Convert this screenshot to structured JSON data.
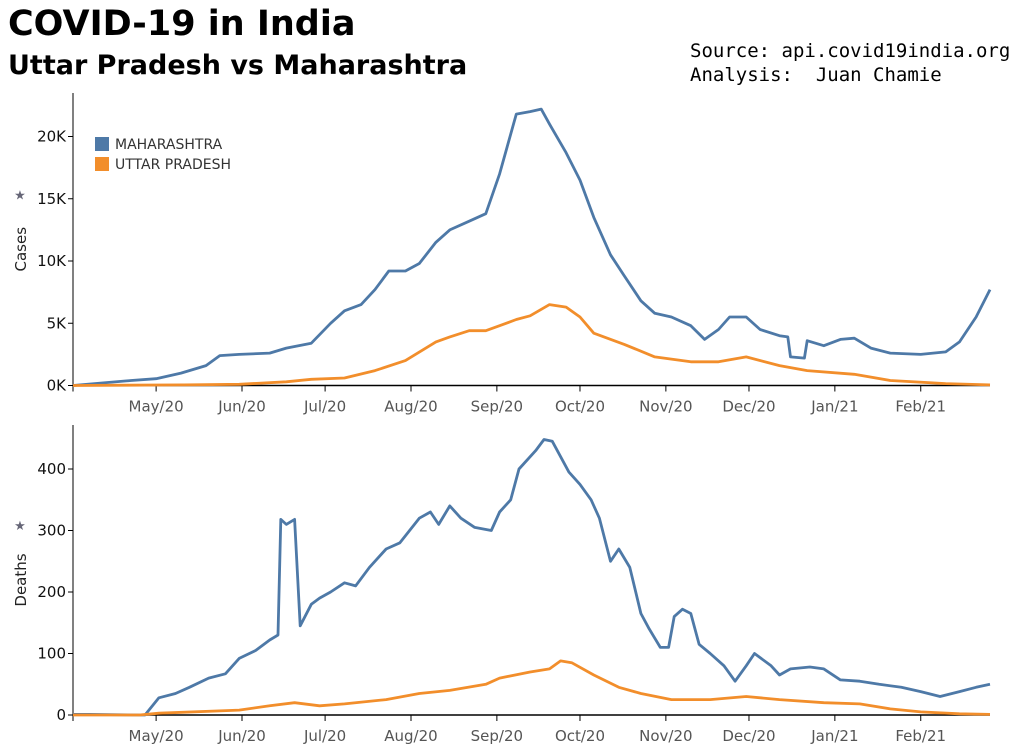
{
  "header": {
    "title": "COVID-19 in India",
    "subtitle": "Uttar Pradesh vs Maharashtra",
    "source": "Source: api.covid19india.org",
    "analysis": "Analysis:  Juan Chamie"
  },
  "colors": {
    "maharashtra": "#4e79a7",
    "uttar_pradesh": "#f28e2b"
  },
  "chart_data": [
    {
      "type": "line",
      "title": "Cases",
      "ylabel": "Cases",
      "x_units": "days since 2020-04-01",
      "xlim": [
        0,
        331
      ],
      "ylim": [
        0,
        23500
      ],
      "yticks": [
        {
          "v": 0,
          "label": "0K"
        },
        {
          "v": 5000,
          "label": "5K"
        },
        {
          "v": 10000,
          "label": "10K"
        },
        {
          "v": 15000,
          "label": "15K"
        },
        {
          "v": 20000,
          "label": "20K"
        }
      ],
      "xticks": [
        {
          "v": 30,
          "label": "May/20"
        },
        {
          "v": 61,
          "label": "Jun/20"
        },
        {
          "v": 91,
          "label": "Jul/20"
        },
        {
          "v": 122,
          "label": "Aug/20"
        },
        {
          "v": 153,
          "label": "Sep/20"
        },
        {
          "v": 183,
          "label": "Oct/20"
        },
        {
          "v": 214,
          "label": "Nov/20"
        },
        {
          "v": 244,
          "label": "Dec/20"
        },
        {
          "v": 275,
          "label": "Jan/21"
        },
        {
          "v": 306,
          "label": "Feb/21"
        }
      ],
      "legend": {
        "placement": "top-left",
        "entries": [
          "MAHARASHTRA",
          "UTTAR PRADESH"
        ]
      },
      "series": [
        {
          "name": "MAHARASHTRA",
          "points": [
            [
              0,
              0
            ],
            [
              21,
              400
            ],
            [
              30,
              550
            ],
            [
              39,
              1000
            ],
            [
              48,
              1600
            ],
            [
              53,
              2400
            ],
            [
              60,
              2500
            ],
            [
              71,
              2600
            ],
            [
              77,
              3000
            ],
            [
              86,
              3400
            ],
            [
              93,
              5000
            ],
            [
              98,
              6000
            ],
            [
              104,
              6500
            ],
            [
              109,
              7700
            ],
            [
              114,
              9200
            ],
            [
              120,
              9200
            ],
            [
              125,
              9800
            ],
            [
              131,
              11500
            ],
            [
              136,
              12500
            ],
            [
              143,
              13200
            ],
            [
              149,
              13800
            ],
            [
              154,
              17000
            ],
            [
              160,
              21800
            ],
            [
              165,
              22000
            ],
            [
              169,
              22200
            ],
            [
              172,
              21000
            ],
            [
              178,
              18700
            ],
            [
              183,
              16500
            ],
            [
              188,
              13500
            ],
            [
              194,
              10500
            ],
            [
              199,
              8800
            ],
            [
              205,
              6800
            ],
            [
              210,
              5800
            ],
            [
              216,
              5500
            ],
            [
              223,
              4800
            ],
            [
              228,
              3700
            ],
            [
              233,
              4500
            ],
            [
              237,
              5500
            ],
            [
              243,
              5500
            ],
            [
              248,
              4500
            ],
            [
              255,
              4000
            ],
            [
              258,
              3900
            ],
            [
              259,
              2300
            ],
            [
              264,
              2200
            ],
            [
              265,
              3600
            ],
            [
              271,
              3200
            ],
            [
              277,
              3700
            ],
            [
              282,
              3800
            ],
            [
              288,
              3000
            ],
            [
              295,
              2600
            ],
            [
              306,
              2500
            ],
            [
              315,
              2700
            ],
            [
              320,
              3500
            ],
            [
              326,
              5500
            ],
            [
              331,
              7700
            ]
          ]
        },
        {
          "name": "UTTAR PRADESH",
          "points": [
            [
              0,
              0
            ],
            [
              40,
              50
            ],
            [
              60,
              100
            ],
            [
              77,
              300
            ],
            [
              86,
              500
            ],
            [
              98,
              600
            ],
            [
              109,
              1200
            ],
            [
              120,
              2000
            ],
            [
              131,
              3500
            ],
            [
              136,
              3900
            ],
            [
              143,
              4400
            ],
            [
              149,
              4400
            ],
            [
              154,
              4800
            ],
            [
              160,
              5300
            ],
            [
              165,
              5600
            ],
            [
              172,
              6500
            ],
            [
              178,
              6300
            ],
            [
              183,
              5500
            ],
            [
              188,
              4200
            ],
            [
              199,
              3300
            ],
            [
              210,
              2300
            ],
            [
              223,
              1900
            ],
            [
              233,
              1900
            ],
            [
              243,
              2300
            ],
            [
              255,
              1600
            ],
            [
              265,
              1200
            ],
            [
              282,
              900
            ],
            [
              295,
              400
            ],
            [
              315,
              150
            ],
            [
              331,
              50
            ]
          ]
        }
      ]
    },
    {
      "type": "line",
      "title": "Deaths",
      "ylabel": "Deaths",
      "x_units": "days since 2020-04-01",
      "xlim": [
        0,
        331
      ],
      "ylim": [
        0,
        470
      ],
      "yticks": [
        {
          "v": 0,
          "label": "0"
        },
        {
          "v": 100,
          "label": "100"
        },
        {
          "v": 200,
          "label": "200"
        },
        {
          "v": 300,
          "label": "300"
        },
        {
          "v": 400,
          "label": "400"
        }
      ],
      "xticks": [
        {
          "v": 30,
          "label": "May/20"
        },
        {
          "v": 61,
          "label": "Jun/20"
        },
        {
          "v": 91,
          "label": "Jul/20"
        },
        {
          "v": 122,
          "label": "Aug/20"
        },
        {
          "v": 153,
          "label": "Sep/20"
        },
        {
          "v": 183,
          "label": "Oct/20"
        },
        {
          "v": 214,
          "label": "Nov/20"
        },
        {
          "v": 244,
          "label": "Dec/20"
        },
        {
          "v": 275,
          "label": "Jan/21"
        },
        {
          "v": 306,
          "label": "Feb/21"
        }
      ],
      "series": [
        {
          "name": "MAHARASHTRA",
          "points": [
            [
              0,
              1
            ],
            [
              6,
              1
            ],
            [
              24,
              0
            ],
            [
              26,
              0
            ],
            [
              31,
              28
            ],
            [
              37,
              35
            ],
            [
              42,
              45
            ],
            [
              49,
              60
            ],
            [
              55,
              67
            ],
            [
              60,
              92
            ],
            [
              66,
              105
            ],
            [
              71,
              122
            ],
            [
              74,
              130
            ],
            [
              75,
              318
            ],
            [
              77,
              310
            ],
            [
              80,
              318
            ],
            [
              82,
              145
            ],
            [
              86,
              180
            ],
            [
              89,
              190
            ],
            [
              93,
              200
            ],
            [
              98,
              215
            ],
            [
              102,
              210
            ],
            [
              107,
              240
            ],
            [
              113,
              270
            ],
            [
              118,
              280
            ],
            [
              125,
              320
            ],
            [
              129,
              330
            ],
            [
              132,
              310
            ],
            [
              136,
              340
            ],
            [
              140,
              320
            ],
            [
              145,
              305
            ],
            [
              151,
              300
            ],
            [
              154,
              330
            ],
            [
              158,
              350
            ],
            [
              161,
              400
            ],
            [
              167,
              430
            ],
            [
              170,
              448
            ],
            [
              173,
              445
            ],
            [
              176,
              420
            ],
            [
              179,
              395
            ],
            [
              183,
              375
            ],
            [
              187,
              350
            ],
            [
              190,
              320
            ],
            [
              194,
              250
            ],
            [
              197,
              270
            ],
            [
              201,
              240
            ],
            [
              205,
              165
            ],
            [
              208,
              140
            ],
            [
              212,
              110
            ],
            [
              215,
              110
            ],
            [
              217,
              160
            ],
            [
              220,
              172
            ],
            [
              223,
              165
            ],
            [
              226,
              115
            ],
            [
              230,
              100
            ],
            [
              235,
              80
            ],
            [
              239,
              55
            ],
            [
              243,
              80
            ],
            [
              246,
              100
            ],
            [
              252,
              80
            ],
            [
              255,
              65
            ],
            [
              259,
              75
            ],
            [
              266,
              78
            ],
            [
              271,
              75
            ],
            [
              277,
              57
            ],
            [
              284,
              55
            ],
            [
              291,
              50
            ],
            [
              299,
              45
            ],
            [
              306,
              38
            ],
            [
              313,
              30
            ],
            [
              320,
              38
            ],
            [
              326,
              45
            ],
            [
              331,
              50
            ]
          ]
        },
        {
          "name": "UTTAR PRADESH",
          "points": [
            [
              0,
              0
            ],
            [
              24,
              0
            ],
            [
              31,
              3
            ],
            [
              60,
              8
            ],
            [
              71,
              15
            ],
            [
              80,
              20
            ],
            [
              89,
              15
            ],
            [
              98,
              18
            ],
            [
              113,
              25
            ],
            [
              125,
              35
            ],
            [
              136,
              40
            ],
            [
              149,
              50
            ],
            [
              154,
              60
            ],
            [
              165,
              70
            ],
            [
              172,
              75
            ],
            [
              176,
              88
            ],
            [
              180,
              85
            ],
            [
              188,
              65
            ],
            [
              197,
              45
            ],
            [
              205,
              35
            ],
            [
              216,
              25
            ],
            [
              230,
              25
            ],
            [
              243,
              30
            ],
            [
              255,
              25
            ],
            [
              271,
              20
            ],
            [
              284,
              18
            ],
            [
              295,
              10
            ],
            [
              306,
              5
            ],
            [
              320,
              2
            ],
            [
              331,
              1
            ]
          ]
        }
      ]
    }
  ]
}
